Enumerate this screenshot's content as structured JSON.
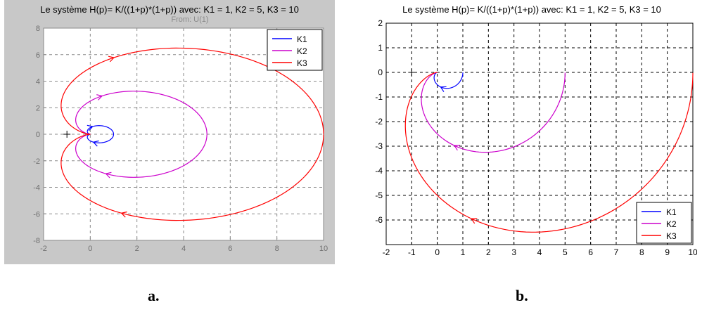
{
  "chart_data": [
    {
      "id": "a",
      "type": "line",
      "title": "Le système H(p)= K/((1+p)*(1+p)) avec: K1 = 1, K2 = 5, K3 = 10",
      "subtitle": "From: U(1)",
      "xlim": [
        -2,
        10
      ],
      "ylim": [
        -8,
        8
      ],
      "xticks": [
        -2,
        0,
        2,
        4,
        6,
        8,
        10
      ],
      "yticks": [
        -8,
        -6,
        -4,
        -2,
        0,
        2,
        4,
        6,
        8
      ],
      "grid": true,
      "legend_position": "top-right",
      "critical_point": [
        -1,
        0
      ],
      "series": [
        {
          "name": "K1",
          "color": "#0000ff",
          "gain": 1,
          "mirrored": true
        },
        {
          "name": "K2",
          "color": "#cc00cc",
          "gain": 5,
          "mirrored": true
        },
        {
          "name": "K3",
          "color": "#ff0000",
          "gain": 10,
          "mirrored": true
        }
      ]
    },
    {
      "id": "b",
      "type": "line",
      "title": "Le système H(p)= K/((1+p)*(1+p)) avec: K1 = 1, K2 = 5, K3 = 10",
      "xlim": [
        -2,
        10
      ],
      "ylim": [
        -7,
        2
      ],
      "xticks": [
        -2,
        -1,
        0,
        1,
        2,
        3,
        4,
        5,
        6,
        7,
        8,
        9,
        10
      ],
      "yticks": [
        -6,
        -5,
        -4,
        -3,
        -2,
        -1,
        0,
        1,
        2
      ],
      "grid": true,
      "legend_position": "bottom-right",
      "critical_point": [
        -1,
        0
      ],
      "series": [
        {
          "name": "K1",
          "color": "#0000ff",
          "gain": 1,
          "mirrored": false
        },
        {
          "name": "K2",
          "color": "#cc00cc",
          "gain": 5,
          "mirrored": false
        },
        {
          "name": "K3",
          "color": "#ff0000",
          "gain": 10,
          "mirrored": false
        }
      ]
    }
  ],
  "captions": {
    "a": "a.",
    "b": "b."
  }
}
